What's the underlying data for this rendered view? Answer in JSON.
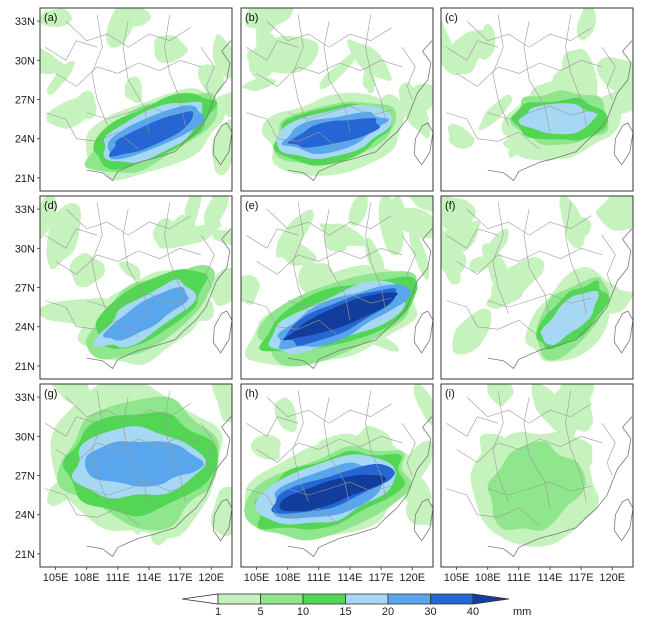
{
  "figure": {
    "panel_labels": [
      "(a)",
      "(b)",
      "(c)",
      "(d)",
      "(e)",
      "(f)",
      "(g)",
      "(h)",
      "(i)"
    ],
    "lat_ticks": [
      "33N",
      "30N",
      "27N",
      "24N",
      "21N"
    ],
    "lon_ticks": [
      "105E",
      "108E",
      "111E",
      "114E",
      "117E",
      "120E"
    ],
    "lat_values": [
      33,
      30,
      27,
      24,
      21
    ],
    "lon_values": [
      105,
      108,
      111,
      114,
      117,
      120
    ],
    "extent": {
      "lon": [
        103.5,
        122
      ],
      "lat": [
        20,
        34
      ]
    }
  },
  "colorbar": {
    "ticks": [
      "1",
      "5",
      "10",
      "15",
      "20",
      "30",
      "40"
    ],
    "unit": "mm",
    "colors": [
      "#ffffff",
      "#c6f2bd",
      "#8fe68c",
      "#54d655",
      "#a7d8f3",
      "#5aa6ec",
      "#2566d4",
      "#123d9c"
    ]
  },
  "panels": [
    {
      "label": "(a)",
      "band": {
        "lon1": 109,
        "lat1": 22.5,
        "lon2": 120,
        "lat2": 26.5,
        "peak": 30,
        "width": 1.6
      }
    },
    {
      "label": "(b)",
      "band": {
        "lon1": 107,
        "lat1": 23.5,
        "lon2": 118,
        "lat2": 25.5,
        "peak": 30,
        "width": 1.7
      }
    },
    {
      "label": "(c)",
      "band": {
        "lon1": 111,
        "lat1": 25.5,
        "lon2": 119,
        "lat2": 25.5,
        "peak": 15,
        "width": 1.6
      }
    },
    {
      "label": "(d)",
      "band": {
        "lon1": 109,
        "lat1": 22.5,
        "lon2": 119,
        "lat2": 27.5,
        "peak": 20,
        "width": 1.8
      }
    },
    {
      "label": "(e)",
      "band": {
        "lon1": 106,
        "lat1": 22.5,
        "lon2": 120,
        "lat2": 27,
        "peak": 40,
        "width": 1.7
      }
    },
    {
      "label": "(f)",
      "band": {
        "lon1": 113,
        "lat1": 22.5,
        "lon2": 119,
        "lat2": 27,
        "peak": 15,
        "width": 1.5
      }
    },
    {
      "label": "(g)",
      "band": {
        "lon1": 106,
        "lat1": 28,
        "lon2": 120,
        "lat2": 28,
        "peak": 20,
        "width": 3.5
      }
    },
    {
      "label": "(h)",
      "band": {
        "lon1": 105,
        "lat1": 24,
        "lon2": 119,
        "lat2": 27.5,
        "peak": 40,
        "width": 2.0
      }
    },
    {
      "label": "(i)",
      "band": {
        "lon1": 109,
        "lat1": 24,
        "lon2": 116,
        "lat2": 28,
        "peak": 5,
        "width": 3.0
      }
    }
  ]
}
